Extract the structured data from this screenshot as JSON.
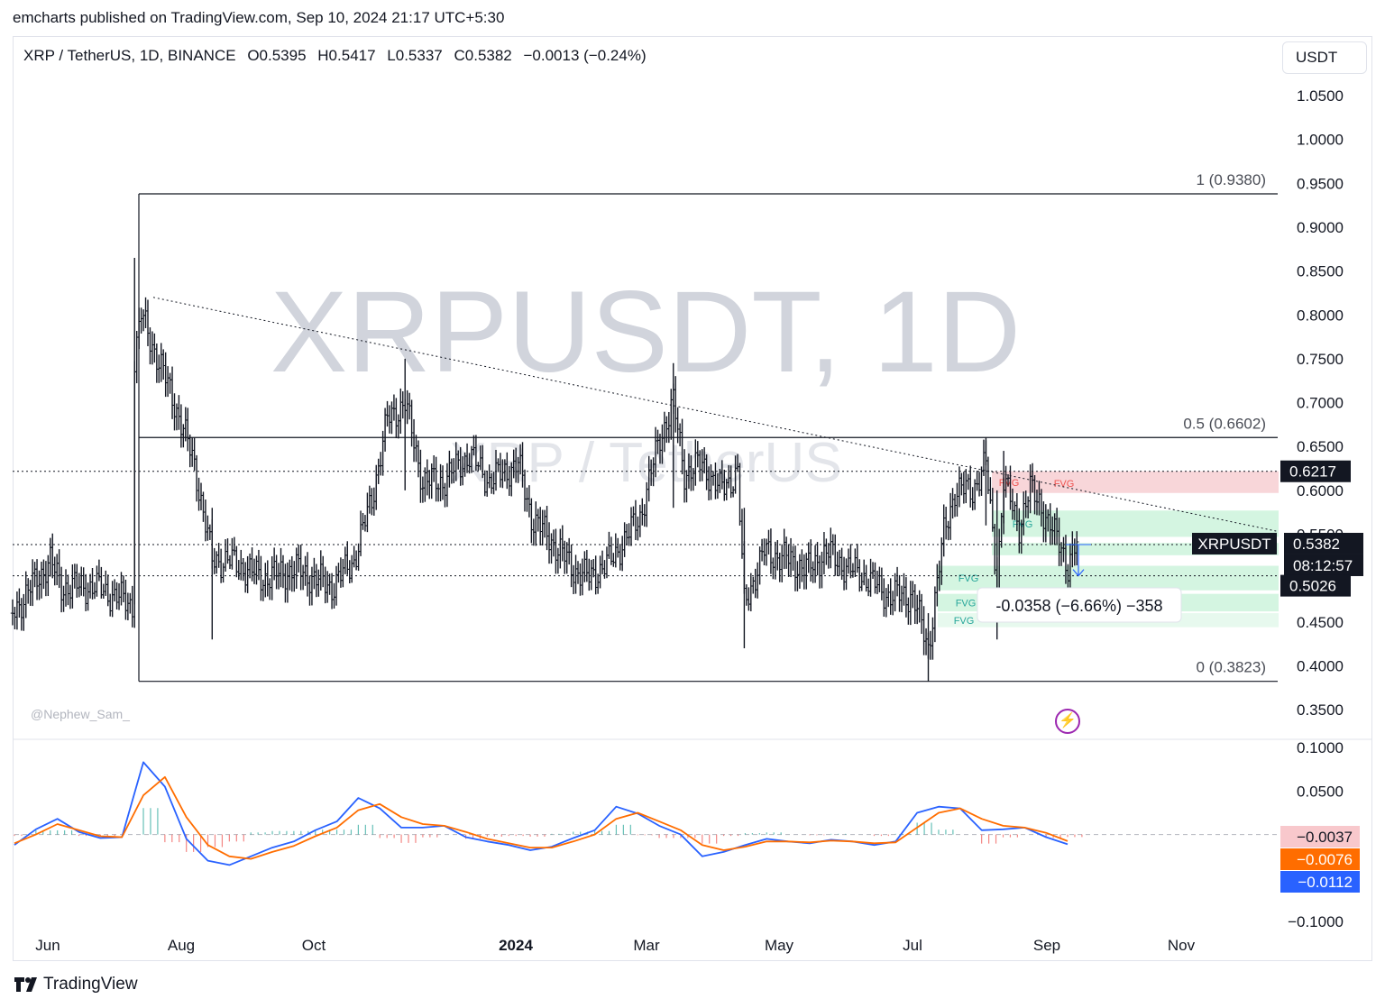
{
  "publisher_line": "emcharts published on TradingView.com, Sep 10, 2024 21:17 UTC+5:30",
  "legend": {
    "symbol": "XRP / TetherUS, 1D, BINANCE",
    "open": "O0.5395",
    "high": "H0.5417",
    "low": "L0.5337",
    "close": "C0.5382",
    "change": "−0.0013 (−0.24%)"
  },
  "currency_button": "USDT",
  "watermark": {
    "main": "XRPUSDT, 1D",
    "sub": "XRP / TetherUS"
  },
  "author_tag": "@Nephew_Sam_",
  "footer_brand": "TradingView",
  "colors": {
    "fvg_red": "#f7cfd2",
    "fvg_green": "#cdf3dc",
    "macd_line": "#2962ff",
    "signal_line": "#ff6d00",
    "hist_up": "#26a69a",
    "hist_down": "#ef5350",
    "measure": "#2962ff",
    "bolt": "#9c27b0"
  },
  "chart_data": [
    {
      "type": "ohlc",
      "title": "XRPUSDT, 1D",
      "x_ticks": [
        "Jun",
        "Aug",
        "Oct",
        "2024",
        "Mar",
        "May",
        "Jul",
        "Sep",
        "Nov"
      ],
      "y_ticks": [
        "1.0500",
        "1.0000",
        "0.9500",
        "0.9000",
        "0.8500",
        "0.8000",
        "0.7500",
        "0.7000",
        "0.6500",
        "0.6000",
        "0.5500",
        "0.5000",
        "0.4500",
        "0.4000",
        "0.3500"
      ],
      "ylim": [
        0.32,
        1.09
      ],
      "fib_levels": [
        {
          "label": "1 (0.9380)",
          "value": 0.938
        },
        {
          "label": "0.5 (0.6602)",
          "value": 0.6602
        },
        {
          "label": "0 (0.3823)",
          "value": 0.3823
        }
      ],
      "horizontal_levels": [
        0.6217,
        0.5382,
        0.5026
      ],
      "price_labels": [
        {
          "text": "0.6217",
          "value": 0.6217
        },
        {
          "text": "0.5382",
          "value": 0.5382
        },
        {
          "text": "08:12:57",
          "value": 0.5382
        },
        {
          "text": "0.5026",
          "value": 0.5026
        }
      ],
      "symbol_tag": "XRPUSDT",
      "fvg_label": "FVG",
      "measure_label": "-0.0358 (−6.66%) −358",
      "close_series": [
        [
          "2023-05-19",
          0.46
        ],
        [
          "2023-06-05",
          0.52
        ],
        [
          "2023-06-10",
          0.49
        ],
        [
          "2023-06-25",
          0.49
        ],
        [
          "2023-07-12",
          0.47
        ],
        [
          "2023-07-13",
          0.75
        ],
        [
          "2023-07-16",
          0.8
        ],
        [
          "2023-07-31",
          0.7
        ],
        [
          "2023-08-09",
          0.63
        ],
        [
          "2023-08-17",
          0.52
        ],
        [
          "2023-08-24",
          0.52
        ],
        [
          "2023-09-09",
          0.5
        ],
        [
          "2023-09-24",
          0.51
        ],
        [
          "2023-10-10",
          0.49
        ],
        [
          "2023-10-20",
          0.52
        ],
        [
          "2023-10-28",
          0.59
        ],
        [
          "2023-11-04",
          0.68
        ],
        [
          "2023-11-12",
          0.7
        ],
        [
          "2023-11-20",
          0.61
        ],
        [
          "2023-11-29",
          0.61
        ],
        [
          "2023-12-11",
          0.64
        ],
        [
          "2023-12-20",
          0.61
        ],
        [
          "2024-01-02",
          0.63
        ],
        [
          "2024-01-08",
          0.57
        ],
        [
          "2024-01-18",
          0.54
        ],
        [
          "2024-01-27",
          0.51
        ],
        [
          "2024-02-03",
          0.5
        ],
        [
          "2024-02-13",
          0.52
        ],
        [
          "2024-02-26",
          0.57
        ],
        [
          "2024-03-06",
          0.66
        ],
        [
          "2024-03-12",
          0.7
        ],
        [
          "2024-03-17",
          0.62
        ],
        [
          "2024-03-25",
          0.63
        ],
        [
          "2024-04-02",
          0.6
        ],
        [
          "2024-04-10",
          0.62
        ],
        [
          "2024-04-13",
          0.47
        ],
        [
          "2024-04-22",
          0.53
        ],
        [
          "2024-05-04",
          0.52
        ],
        [
          "2024-05-12",
          0.51
        ],
        [
          "2024-05-20",
          0.53
        ],
        [
          "2024-05-30",
          0.51
        ],
        [
          "2024-06-07",
          0.5
        ],
        [
          "2024-06-17",
          0.48
        ],
        [
          "2024-06-28",
          0.48
        ],
        [
          "2024-07-05",
          0.42
        ],
        [
          "2024-07-12",
          0.55
        ],
        [
          "2024-07-17",
          0.6
        ],
        [
          "2024-07-25",
          0.6
        ],
        [
          "2024-07-31",
          0.63
        ],
        [
          "2024-08-05",
          0.5
        ],
        [
          "2024-08-08",
          0.61
        ],
        [
          "2024-08-15",
          0.56
        ],
        [
          "2024-08-20",
          0.6
        ],
        [
          "2024-08-24",
          0.59
        ],
        [
          "2024-08-28",
          0.56
        ],
        [
          "2024-09-03",
          0.54
        ],
        [
          "2024-09-06",
          0.51
        ],
        [
          "2024-09-10",
          0.5382
        ]
      ]
    },
    {
      "type": "line",
      "title": "MACD",
      "y_ticks": [
        "0.1000",
        "0.0500",
        "−0.1000"
      ],
      "ylim": [
        -0.1,
        0.115
      ],
      "value_labels": [
        {
          "text": "−0.0037",
          "value": -0.0037
        },
        {
          "text": "−0.0076",
          "value": -0.0076
        },
        {
          "text": "−0.0112",
          "value": -0.0112
        }
      ],
      "series": [
        {
          "values": [
            -0.012,
            0.006,
            0.018,
            0.003,
            -0.004,
            -0.003,
            0.083,
            0.055,
            -0.005,
            -0.03,
            -0.035,
            -0.025,
            -0.015,
            -0.008,
            0.005,
            0.015,
            0.042,
            0.03,
            0.008,
            0.008,
            0.01,
            -0.003,
            -0.008,
            -0.012,
            -0.018,
            -0.014,
            -0.004,
            0.005,
            0.032,
            0.024,
            0.01,
            0.0,
            -0.025,
            -0.02,
            -0.012,
            -0.005,
            -0.008,
            -0.01,
            -0.006,
            -0.008,
            -0.012,
            -0.008,
            0.025,
            0.032,
            0.03,
            0.005,
            0.006,
            0.008,
            -0.003,
            -0.0112
          ]
        },
        {
          "values": [
            -0.01,
            0.0,
            0.012,
            0.005,
            -0.002,
            -0.003,
            0.045,
            0.066,
            0.02,
            -0.012,
            -0.025,
            -0.028,
            -0.02,
            -0.013,
            -0.002,
            0.008,
            0.028,
            0.035,
            0.02,
            0.012,
            0.01,
            0.003,
            -0.005,
            -0.01,
            -0.015,
            -0.015,
            -0.008,
            0.0,
            0.018,
            0.025,
            0.015,
            0.005,
            -0.012,
            -0.018,
            -0.014,
            -0.008,
            -0.008,
            -0.009,
            -0.007,
            -0.008,
            -0.01,
            -0.009,
            0.008,
            0.025,
            0.03,
            0.018,
            0.01,
            0.008,
            0.002,
            -0.0076
          ]
        }
      ]
    }
  ]
}
